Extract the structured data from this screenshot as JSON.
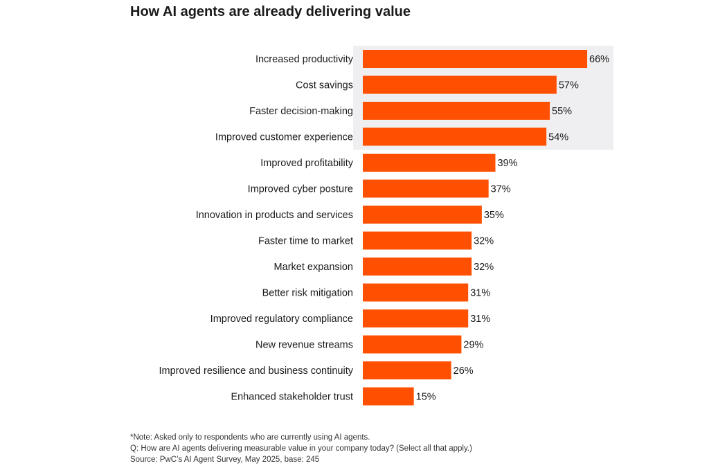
{
  "chart_data": {
    "type": "bar",
    "orientation": "horizontal",
    "title": "How AI agents are already delivering value",
    "categories": [
      "Increased productivity",
      "Cost savings",
      "Faster decision-making",
      "Improved customer experience",
      "Improved profitability",
      "Improved cyber posture",
      "Innovation in products and services",
      "Faster time to market",
      "Market expansion",
      "Better risk mitigation",
      "Improved regulatory compliance",
      "New revenue streams",
      "Improved resilience and business continuity",
      "Enhanced stakeholder trust"
    ],
    "values": [
      66,
      57,
      55,
      54,
      39,
      37,
      35,
      32,
      32,
      31,
      31,
      29,
      26,
      15
    ],
    "data_labels": [
      "66%",
      "57%",
      "55%",
      "54%",
      "39%",
      "37%",
      "35%",
      "32%",
      "32%",
      "31%",
      "31%",
      "29%",
      "26%",
      "15%"
    ],
    "unit": "%",
    "highlighted_categories": [
      "Increased productivity",
      "Cost savings",
      "Faster decision-making",
      "Improved customer experience"
    ],
    "colors": {
      "bar": "#fe5000",
      "highlight_bg": "#efeff1",
      "text": "#1a1a1a"
    },
    "grid": false,
    "legend": "none"
  },
  "notes": [
    "*Note: Asked only to respondents who are currently using AI agents.",
    "Q: How are AI agents delivering measurable value in your company today? (Select all that apply.)",
    "Source: PwC’s AI Agent Survey, May 2025, base: 245"
  ]
}
